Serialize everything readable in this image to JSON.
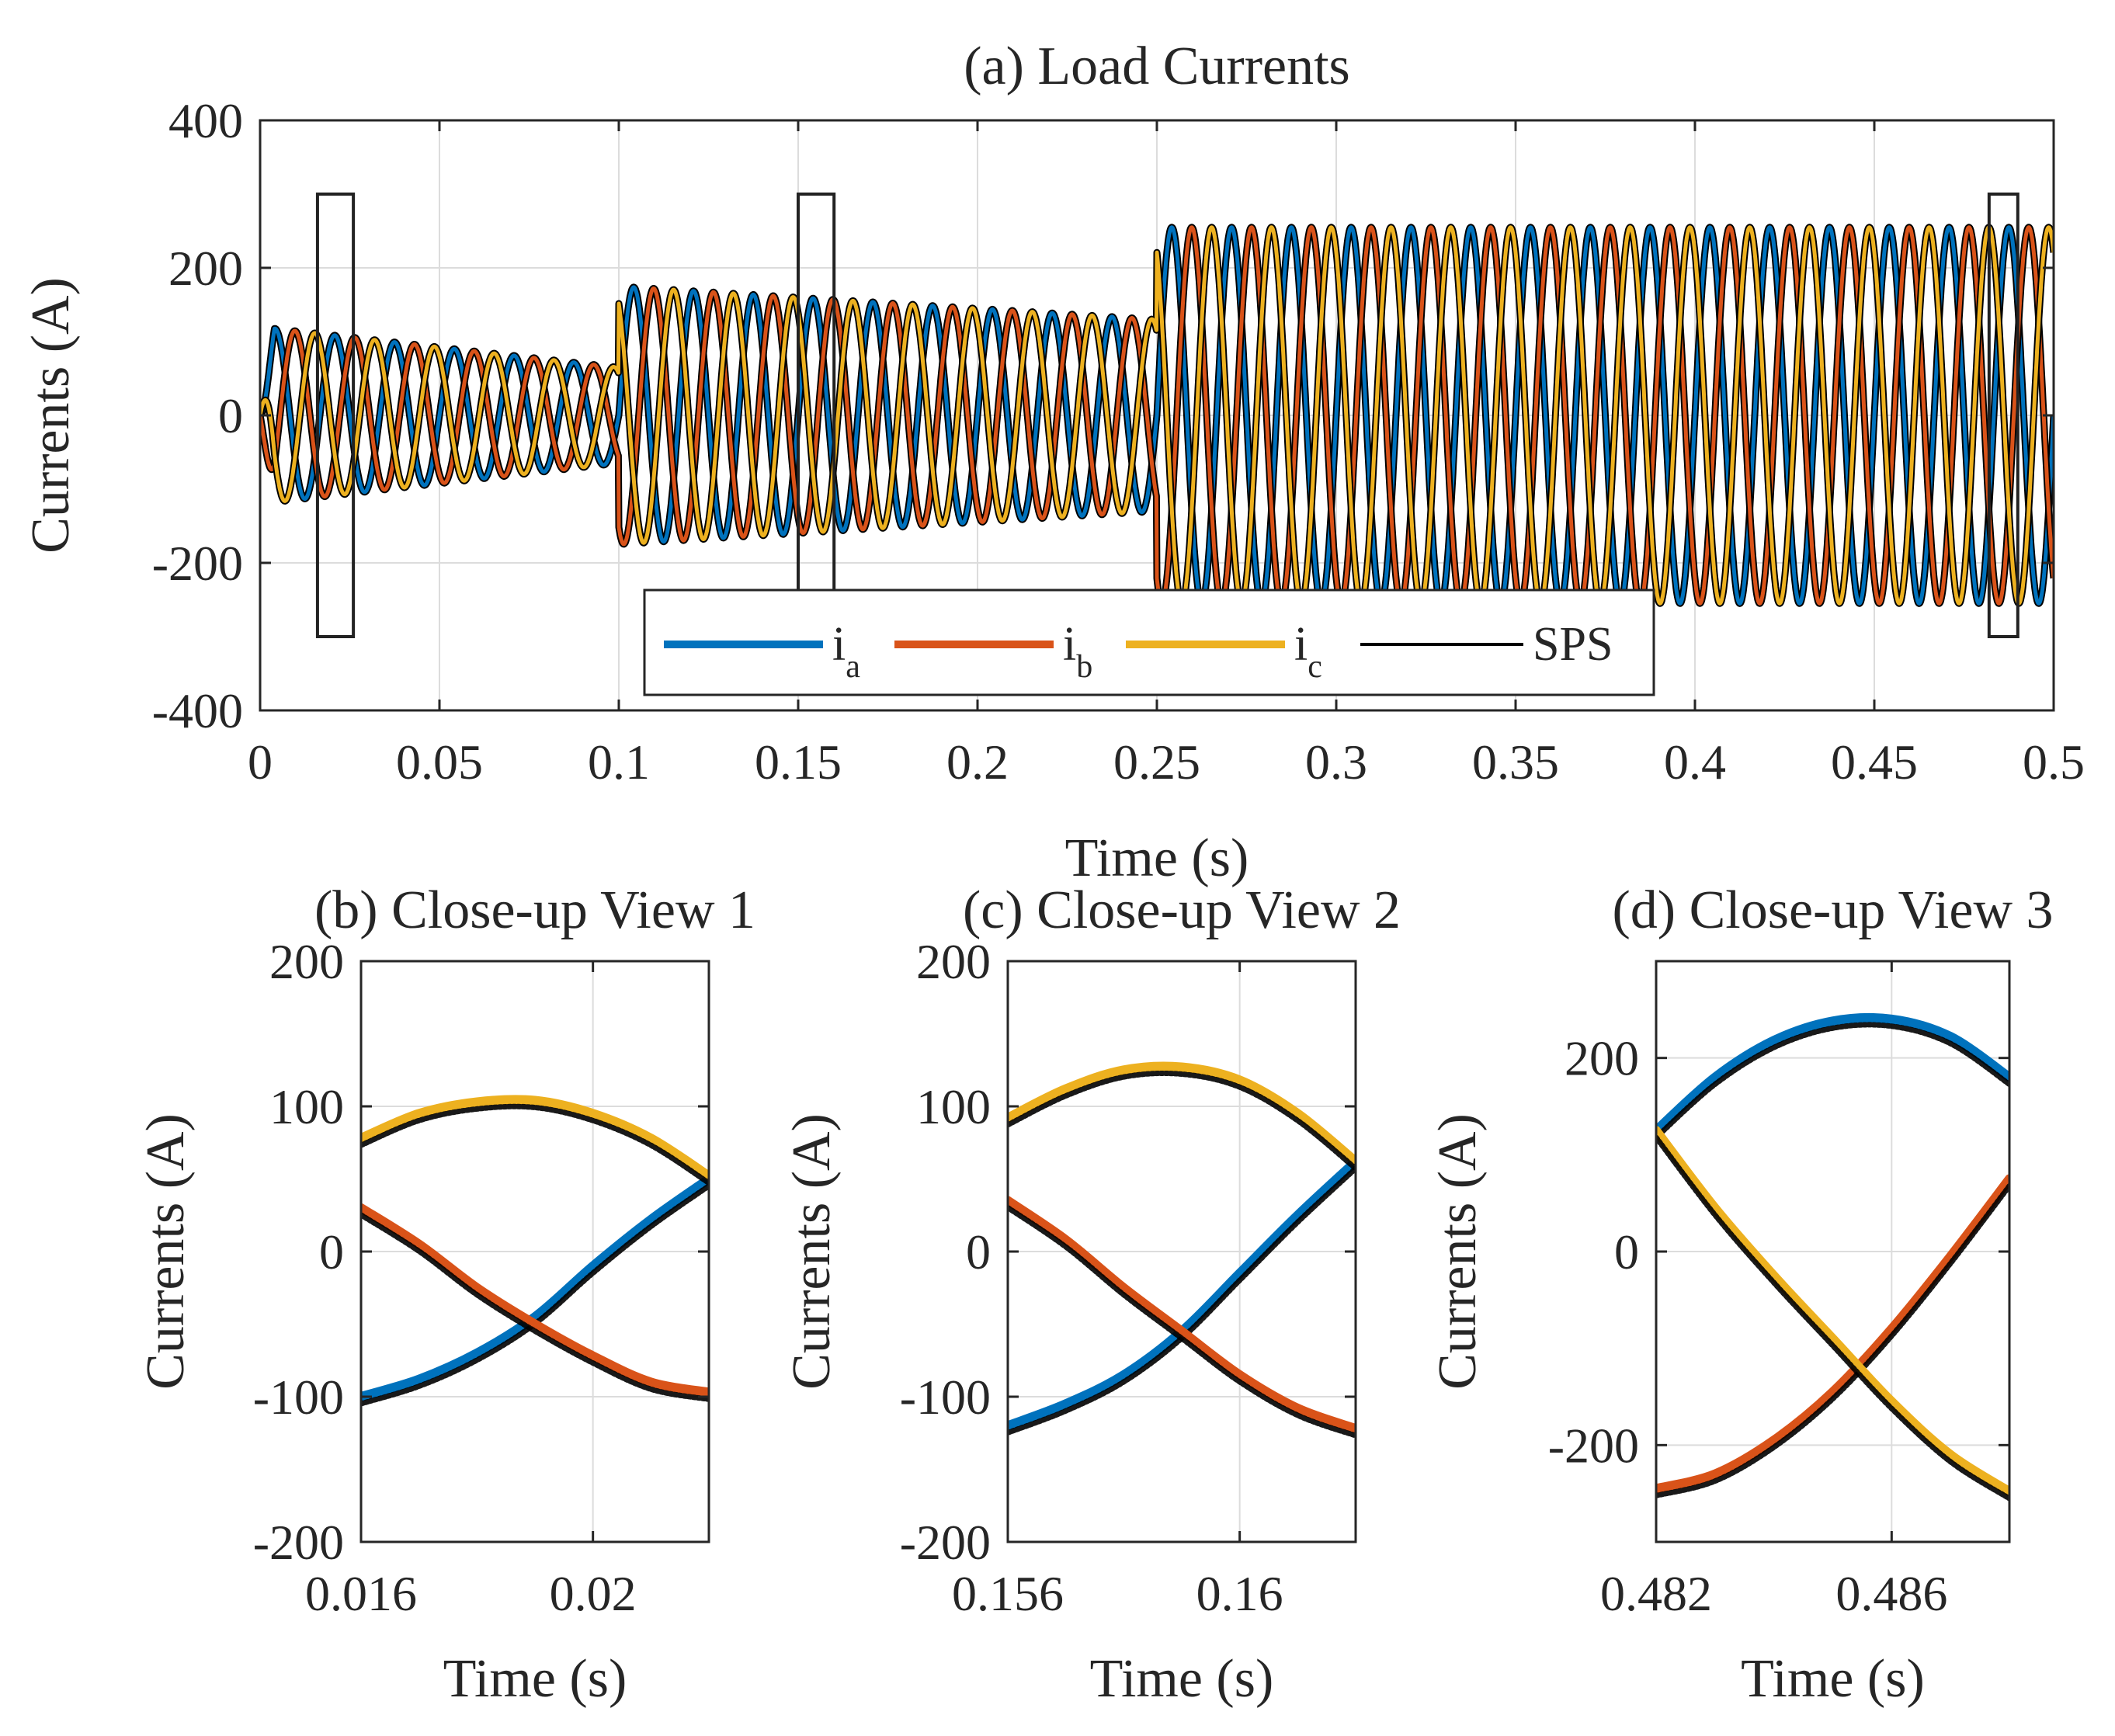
{
  "colors": {
    "ia": "#0072BD",
    "ib": "#D95319",
    "ic": "#EDB120",
    "sps": "#000000",
    "grid": "#dcdcdc",
    "axis": "#262626"
  },
  "chart_data": [
    {
      "type": "line",
      "title": "(a) Load Currents",
      "xlabel": "Time (s)",
      "ylabel": "Currents (A)",
      "xlim": [
        0,
        0.5
      ],
      "ylim": [
        -400,
        400
      ],
      "xticks": [
        0,
        0.05,
        0.1,
        0.15,
        0.2,
        0.25,
        0.3,
        0.35,
        0.4,
        0.45,
        0.5
      ],
      "xtick_labels": [
        "0",
        "0.05",
        "0.1",
        "0.15",
        "0.2",
        "0.25",
        "0.3",
        "0.35",
        "0.4",
        "0.45",
        "0.5"
      ],
      "yticks": [
        -400,
        -200,
        0,
        200,
        400
      ],
      "ytick_labels": [
        "-400",
        "-200",
        "0",
        "200",
        "400"
      ],
      "grid": true,
      "legend": {
        "placement": "bottom-center",
        "entries": [
          {
            "label": "i",
            "sub": "a",
            "color_key": "ia"
          },
          {
            "label": "i",
            "sub": "b",
            "color_key": "ib"
          },
          {
            "label": "i",
            "sub": "c",
            "color_key": "ic"
          },
          {
            "label": "SPS",
            "sub": "",
            "color_key": "sps"
          }
        ]
      },
      "frequency_hz": 60,
      "segments": [
        {
          "t_start": 0.0,
          "t_end": 0.1,
          "amplitude_start": 120,
          "amplitude_end": 65
        },
        {
          "t_start": 0.1,
          "t_end": 0.25,
          "amplitude_start": 175,
          "amplitude_end": 130
        },
        {
          "t_start": 0.25,
          "t_end": 0.5,
          "amplitude_start": 255,
          "amplitude_end": 255
        }
      ],
      "series": [
        {
          "name": "i_a",
          "phase_deg": 0
        },
        {
          "name": "i_b",
          "phase_deg": -120
        },
        {
          "name": "i_c",
          "phase_deg": 120
        },
        {
          "name": "SPS",
          "phase_deg": 0
        }
      ],
      "zoom_boxes": [
        {
          "x": [
            0.016,
            0.026
          ],
          "y": [
            -300,
            300
          ]
        },
        {
          "x": [
            0.15,
            0.16
          ],
          "y": [
            -300,
            300
          ]
        },
        {
          "x": [
            0.482,
            0.49
          ],
          "y": [
            -300,
            300
          ]
        }
      ]
    },
    {
      "type": "line",
      "title": "(b) Close-up View 1",
      "xlabel": "Time (s)",
      "ylabel": "Currents (A)",
      "xlim": [
        0.016,
        0.022
      ],
      "ylim": [
        -200,
        200
      ],
      "xticks": [
        0.016,
        0.02
      ],
      "xtick_labels": [
        "0.016",
        "0.02"
      ],
      "yticks": [
        -200,
        -100,
        0,
        100,
        200
      ],
      "ytick_labels": [
        "-200",
        "-100",
        "0",
        "100",
        "200"
      ],
      "grid": true,
      "series": [
        {
          "name": "i_a",
          "x": [
            0.016,
            0.017,
            0.018,
            0.019,
            0.02,
            0.021,
            0.022
          ],
          "y": [
            -100,
            -88,
            -70,
            -45,
            -10,
            22,
            50
          ]
        },
        {
          "name": "i_b",
          "x": [
            0.016,
            0.017,
            0.018,
            0.019,
            0.02,
            0.021,
            0.022
          ],
          "y": [
            30,
            5,
            -25,
            -50,
            -72,
            -90,
            -97
          ]
        },
        {
          "name": "i_c",
          "x": [
            0.016,
            0.017,
            0.018,
            0.019,
            0.02,
            0.021,
            0.022
          ],
          "y": [
            78,
            95,
            103,
            104,
            95,
            78,
            52
          ]
        }
      ]
    },
    {
      "type": "line",
      "title": "(c) Close-up View 2",
      "xlabel": "Time (s)",
      "ylabel": "Currents (A)",
      "xlim": [
        0.156,
        0.162
      ],
      "ylim": [
        -200,
        200
      ],
      "xticks": [
        0.156,
        0.16
      ],
      "xtick_labels": [
        "0.156",
        "0.16"
      ],
      "yticks": [
        -200,
        -100,
        0,
        100,
        200
      ],
      "ytick_labels": [
        "-200",
        "-100",
        "0",
        "100",
        "200"
      ],
      "grid": true,
      "series": [
        {
          "name": "i_a",
          "x": [
            0.156,
            0.157,
            0.158,
            0.159,
            0.16,
            0.161,
            0.162
          ],
          "y": [
            -120,
            -105,
            -85,
            -55,
            -15,
            25,
            62
          ]
        },
        {
          "name": "i_b",
          "x": [
            0.156,
            0.157,
            0.158,
            0.159,
            0.16,
            0.161,
            0.162
          ],
          "y": [
            35,
            8,
            -25,
            -55,
            -85,
            -108,
            -122
          ]
        },
        {
          "name": "i_c",
          "x": [
            0.156,
            0.157,
            0.158,
            0.159,
            0.16,
            0.161,
            0.162
          ],
          "y": [
            92,
            112,
            125,
            127,
            118,
            95,
            62
          ]
        }
      ]
    },
    {
      "type": "line",
      "title": "(d) Close-up View 3",
      "xlabel": "Time (s)",
      "ylabel": "Currents (A)",
      "xlim": [
        0.482,
        0.488
      ],
      "ylim": [
        -300,
        300
      ],
      "xticks": [
        0.482,
        0.486
      ],
      "xtick_labels": [
        "0.482",
        "0.486"
      ],
      "yticks": [
        -200,
        0,
        200
      ],
      "ytick_labels": [
        "-200",
        "0",
        "200"
      ],
      "grid": true,
      "series": [
        {
          "name": "i_a",
          "x": [
            0.482,
            0.483,
            0.484,
            0.485,
            0.486,
            0.487,
            0.488
          ],
          "y": [
            125,
            180,
            218,
            238,
            240,
            222,
            180
          ]
        },
        {
          "name": "i_b",
          "x": [
            0.482,
            0.483,
            0.484,
            0.485,
            0.486,
            0.487,
            0.488
          ],
          "y": [
            -245,
            -230,
            -195,
            -145,
            -80,
            -5,
            75
          ]
        },
        {
          "name": "i_c",
          "x": [
            0.482,
            0.483,
            0.484,
            0.485,
            0.486,
            0.487,
            0.488
          ],
          "y": [
            125,
            45,
            -25,
            -90,
            -155,
            -210,
            -248
          ]
        }
      ]
    }
  ]
}
